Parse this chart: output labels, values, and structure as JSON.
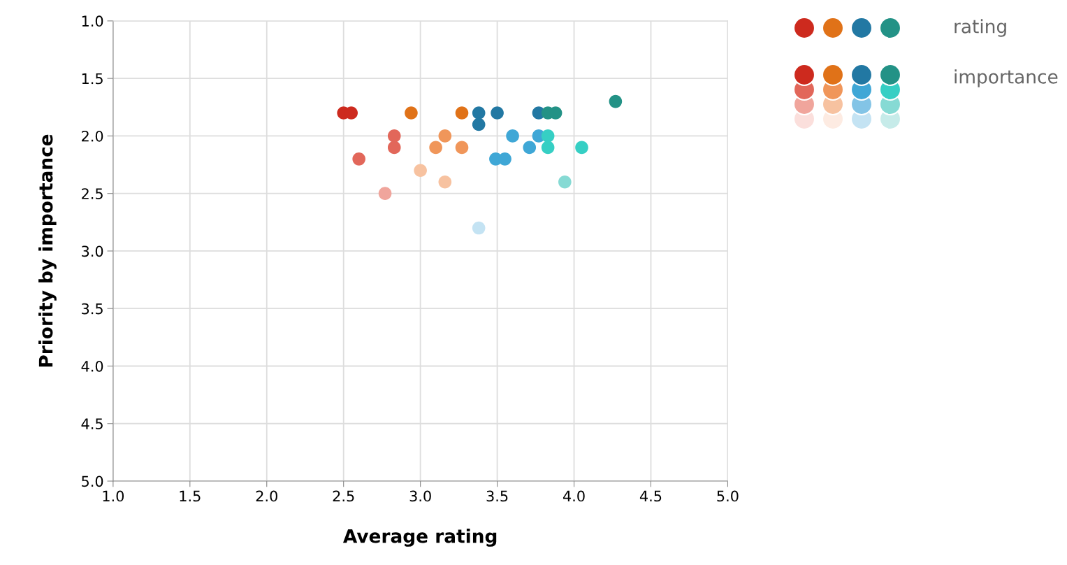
{
  "chart_data": {
    "type": "scatter",
    "xlabel": "Average rating",
    "ylabel": "Priority by importance",
    "xlim": [
      1.0,
      5.0
    ],
    "ylim": [
      5.0,
      1.0
    ],
    "xticks": [
      {
        "value": 1,
        "label": "1.0"
      },
      {
        "value": 1.5,
        "label": "1.5"
      },
      {
        "value": 2,
        "label": "2.0"
      },
      {
        "value": 2.5,
        "label": "2.5"
      },
      {
        "value": 3,
        "label": "3.0"
      },
      {
        "value": 3.5,
        "label": "3.5"
      },
      {
        "value": 4,
        "label": "4.0"
      },
      {
        "value": 4.5,
        "label": "4.5"
      },
      {
        "value": 5,
        "label": "5.0"
      }
    ],
    "yticks": [
      {
        "value": 1,
        "label": "1.0"
      },
      {
        "value": 1.5,
        "label": "1.5"
      },
      {
        "value": 2,
        "label": "2.0"
      },
      {
        "value": 2.5,
        "label": "2.5"
      },
      {
        "value": 3,
        "label": "3.0"
      },
      {
        "value": 3.5,
        "label": "3.5"
      },
      {
        "value": 4,
        "label": "4.0"
      },
      {
        "value": 4.5,
        "label": "4.5"
      },
      {
        "value": 5,
        "label": "5.0"
      }
    ],
    "grid": true,
    "marker": "circle",
    "annotations": [
      "rating",
      "importance"
    ],
    "series": [
      {
        "color": "#cd2a1e",
        "x": [
          2.5,
          2.55
        ],
        "values": [
          1.8,
          1.8
        ]
      },
      {
        "color": "#e2675a",
        "x": [
          2.83,
          2.83,
          2.6
        ],
        "values": [
          2.0,
          2.1,
          2.2
        ]
      },
      {
        "color": "#f0a59c",
        "x": [
          2.77
        ],
        "values": [
          2.5
        ]
      },
      {
        "color": "#fbdfdc"
      },
      {
        "color": "#e07218",
        "x": [
          2.94,
          3.27
        ],
        "values": [
          1.8,
          1.8
        ]
      },
      {
        "color": "#f0965a",
        "x": [
          3.16,
          3.1,
          3.27
        ],
        "values": [
          2.0,
          2.1,
          2.1
        ]
      },
      {
        "color": "#f7c2a0",
        "x": [
          3.0,
          3.16
        ],
        "values": [
          2.3,
          2.4
        ]
      },
      {
        "color": "#fdebe2"
      },
      {
        "color": "#2278a3",
        "x": [
          3.38,
          3.38,
          3.5,
          3.77
        ],
        "values": [
          1.8,
          1.9,
          1.8,
          1.8
        ]
      },
      {
        "color": "#3fa7d6",
        "x": [
          3.6,
          3.77,
          3.71,
          3.49,
          3.55
        ],
        "values": [
          2.0,
          2.0,
          2.1,
          2.2,
          2.2
        ]
      },
      {
        "color": "#83c4e6"
      },
      {
        "color": "#c4e3f3",
        "x": [
          3.38
        ],
        "values": [
          2.8
        ]
      },
      {
        "color": "#239286",
        "x": [
          3.83,
          3.88,
          4.27
        ],
        "values": [
          1.8,
          1.8,
          1.7
        ]
      },
      {
        "color": "#36cfc4",
        "x": [
          3.83,
          3.83,
          4.05
        ],
        "values": [
          2.0,
          2.1,
          2.1
        ]
      },
      {
        "color": "#86dad4",
        "x": [
          3.94
        ],
        "values": [
          2.4
        ]
      },
      {
        "color": "#c6ebe9"
      }
    ]
  }
}
